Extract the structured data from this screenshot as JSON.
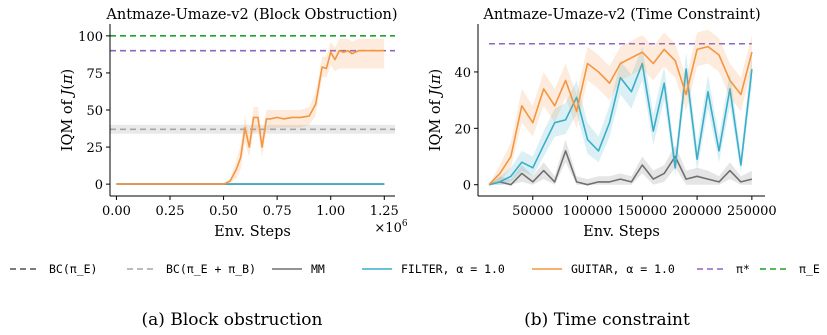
{
  "colors": {
    "bc_expert": "#505050",
    "bc_mixed": "#a6a6a6",
    "mm": "#707070",
    "filter": "#3aaec8",
    "guitar": "#f59540",
    "optimal": "#8f66c4",
    "expert": "#24a02e"
  },
  "legend": {
    "entries": [
      {
        "key": "bc_expert",
        "label": "BC(π_E)",
        "dash": true
      },
      {
        "key": "bc_mixed",
        "label": "BC(π_E + π_B)",
        "dash": true
      },
      {
        "key": "mm",
        "label": "MM",
        "dash": false
      },
      {
        "key": "filter",
        "label": "FILTER, α = 1.0",
        "dash": false
      },
      {
        "key": "guitar",
        "label": "GUITAR, α = 1.0",
        "dash": false
      },
      {
        "key": "optimal",
        "label": "π*",
        "dash": true
      },
      {
        "key": "expert",
        "label": "π_E",
        "dash": true
      }
    ]
  },
  "chart_data": [
    {
      "type": "line",
      "title": "Antmaze-Umaze-v2 (Block Obstruction)",
      "caption": "(a) Block obstruction",
      "xlabel": "Env. Steps",
      "ylabel": "IQM of J(π)",
      "x_scale_label": "×10^6",
      "xlim": [
        -0.03,
        1.3
      ],
      "ylim": [
        -8,
        108
      ],
      "xticks": [
        0.0,
        0.25,
        0.5,
        0.75,
        1.0,
        1.25
      ],
      "xtick_labels": [
        "0.00",
        "0.25",
        "0.50",
        "0.75",
        "1.00",
        "1.25"
      ],
      "yticks": [
        0,
        25,
        50,
        75,
        100
      ],
      "grid": false,
      "hlines": [
        {
          "key": "expert",
          "y": 100
        },
        {
          "key": "optimal",
          "y": 90
        },
        {
          "key": "bc_mixed",
          "y": 37,
          "band": [
            34,
            40
          ]
        }
      ],
      "series": [
        {
          "key": "mm",
          "name": "MM",
          "x": [
            0.0,
            1.25
          ],
          "y": [
            0,
            0
          ]
        },
        {
          "key": "filter",
          "name": "FILTER, α = 1.0",
          "x": [
            0.0,
            1.25
          ],
          "y": [
            0,
            0
          ]
        },
        {
          "key": "guitar",
          "name": "GUITAR, α = 1.0",
          "x": [
            0.0,
            0.5,
            0.53,
            0.56,
            0.58,
            0.6,
            0.62,
            0.64,
            0.66,
            0.68,
            0.7,
            0.72,
            0.75,
            0.78,
            0.82,
            0.86,
            0.9,
            0.93,
            0.96,
            0.98,
            1.0,
            1.02,
            1.04,
            1.06,
            1.08,
            1.1,
            1.13,
            1.16,
            1.2,
            1.25
          ],
          "y": [
            0,
            0,
            2,
            10,
            18,
            38,
            25,
            45,
            45,
            25,
            44,
            44,
            45,
            44,
            45,
            45,
            46,
            54,
            79,
            78,
            89,
            84,
            90,
            89,
            90,
            88,
            90,
            90,
            90,
            90
          ],
          "lower": [
            0,
            0,
            0,
            4,
            10,
            28,
            18,
            35,
            36,
            18,
            36,
            37,
            38,
            38,
            38,
            38,
            40,
            46,
            72,
            72,
            80,
            76,
            78,
            78,
            78,
            78,
            78,
            78,
            78,
            78
          ],
          "upper": [
            0,
            0,
            4,
            16,
            26,
            46,
            32,
            52,
            52,
            32,
            50,
            50,
            50,
            50,
            50,
            50,
            52,
            62,
            86,
            86,
            96,
            92,
            98,
            98,
            98,
            96,
            98,
            98,
            98,
            98
          ]
        }
      ]
    },
    {
      "type": "line",
      "title": "Antmaze-Umaze-v2 (Time Constraint)",
      "caption": "(b) Time constraint",
      "xlabel": "Env. Steps",
      "ylabel": "IQM of J(π)",
      "xlim": [
        0,
        262000
      ],
      "ylim": [
        -4,
        57
      ],
      "xticks": [
        50000,
        100000,
        150000,
        200000,
        250000
      ],
      "xtick_labels": [
        "50000",
        "100000",
        "150000",
        "200000",
        "250000"
      ],
      "yticks": [
        0,
        20,
        40
      ],
      "grid": false,
      "hlines": [
        {
          "key": "optimal",
          "y": 50,
          "x_start": 10000,
          "x_end": 250000
        }
      ],
      "series": [
        {
          "key": "mm",
          "name": "MM",
          "x": [
            10000,
            20000,
            30000,
            40000,
            50000,
            60000,
            70000,
            80000,
            90000,
            100000,
            110000,
            120000,
            130000,
            140000,
            150000,
            160000,
            170000,
            180000,
            190000,
            200000,
            210000,
            220000,
            230000,
            240000,
            250000
          ],
          "y": [
            0,
            1,
            0,
            4,
            1,
            5,
            1,
            12,
            1,
            0,
            1,
            1,
            2,
            1,
            7,
            2,
            4,
            10,
            2,
            3,
            2,
            1,
            5,
            1,
            2
          ],
          "lower": [
            0,
            0,
            0,
            1,
            0,
            2,
            0,
            8,
            0,
            0,
            0,
            0,
            0,
            0,
            4,
            0,
            1,
            6,
            0,
            0,
            0,
            0,
            2,
            0,
            0
          ],
          "upper": [
            0,
            3,
            2,
            7,
            3,
            8,
            3,
            16,
            3,
            2,
            3,
            3,
            4,
            3,
            10,
            5,
            7,
            14,
            5,
            6,
            5,
            3,
            8,
            3,
            5
          ]
        },
        {
          "key": "filter",
          "name": "FILTER, α = 1.0",
          "x": [
            10000,
            20000,
            30000,
            40000,
            50000,
            60000,
            70000,
            80000,
            90000,
            100000,
            110000,
            120000,
            130000,
            140000,
            150000,
            160000,
            170000,
            180000,
            190000,
            200000,
            210000,
            220000,
            230000,
            240000,
            250000
          ],
          "y": [
            0,
            1,
            3,
            8,
            6,
            14,
            22,
            23,
            31,
            16,
            12,
            22,
            38,
            33,
            43,
            19,
            36,
            6,
            41,
            9,
            33,
            12,
            34,
            7,
            41
          ],
          "lower": [
            0,
            0,
            1,
            5,
            3,
            10,
            17,
            18,
            25,
            11,
            8,
            17,
            32,
            27,
            37,
            14,
            30,
            3,
            35,
            5,
            27,
            8,
            28,
            4,
            35
          ],
          "upper": [
            0,
            3,
            6,
            12,
            10,
            19,
            27,
            29,
            37,
            22,
            17,
            28,
            44,
            39,
            49,
            25,
            42,
            10,
            47,
            14,
            39,
            17,
            40,
            11,
            47
          ]
        },
        {
          "key": "guitar",
          "name": "GUITAR, α = 1.0",
          "x": [
            10000,
            20000,
            30000,
            40000,
            50000,
            60000,
            70000,
            80000,
            90000,
            100000,
            110000,
            120000,
            130000,
            140000,
            150000,
            160000,
            170000,
            180000,
            190000,
            200000,
            210000,
            220000,
            230000,
            240000,
            250000
          ],
          "y": [
            0,
            4,
            10,
            28,
            22,
            34,
            28,
            37,
            26,
            43,
            40,
            36,
            43,
            45,
            47,
            43,
            48,
            44,
            32,
            48,
            49,
            46,
            37,
            32,
            47
          ],
          "lower": [
            0,
            1,
            6,
            22,
            17,
            28,
            22,
            31,
            20,
            37,
            34,
            30,
            37,
            39,
            41,
            37,
            42,
            38,
            26,
            42,
            43,
            40,
            31,
            26,
            41
          ],
          "upper": [
            0,
            7,
            15,
            34,
            28,
            40,
            34,
            43,
            32,
            49,
            46,
            42,
            49,
            51,
            53,
            49,
            54,
            50,
            38,
            54,
            55,
            52,
            43,
            38,
            53
          ]
        }
      ]
    }
  ]
}
